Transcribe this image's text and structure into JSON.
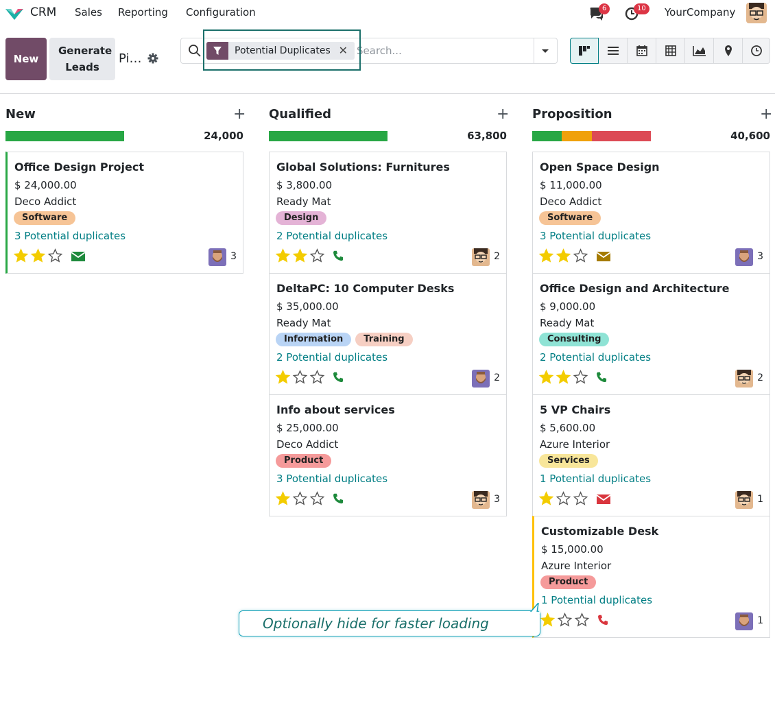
{
  "navbar": {
    "app": "CRM",
    "menu": [
      "Sales",
      "Reporting",
      "Configuration"
    ],
    "messages_count": "6",
    "activities_count": "10",
    "company": "YourCompany"
  },
  "control": {
    "new_label": "New",
    "generate_label": "Generate Leads",
    "breadcrumb": "Pi…"
  },
  "search": {
    "facet": "Potential Duplicates",
    "placeholder": "Search..."
  },
  "colors": {
    "brand": "#714b67",
    "teal": "#017e84",
    "green": "#28a745",
    "orange": "#f0a10b",
    "red": "#dc4a55"
  },
  "columns": [
    {
      "title": "New",
      "total": "24,000",
      "progress": [
        {
          "color": "#28a745",
          "fraction": 1.0
        }
      ],
      "cards": [
        {
          "title": "Office Design Project",
          "amount": "$ 24,000.00",
          "partner": "Deco Addict",
          "tags": [
            {
              "label": "Software",
              "color": "#f6c496"
            }
          ],
          "duplicates": "3 Potential duplicates",
          "stars": 2,
          "activity": "envelope-icon",
          "activity_color": "#1e8a3c",
          "avatar": "bearded",
          "count": "3",
          "border": "green"
        }
      ]
    },
    {
      "title": "Qualified",
      "total": "63,800",
      "progress": [
        {
          "color": "#28a745",
          "fraction": 1.0
        }
      ],
      "cards": [
        {
          "title": "Global Solutions: Furnitures",
          "amount": "$ 3,800.00",
          "partner": "Ready Mat",
          "tags": [
            {
              "label": "Design",
              "color": "#e4b3d6"
            }
          ],
          "duplicates": "2 Potential duplicates",
          "stars": 2,
          "activity": "phone-icon",
          "activity_color": "#1e8a3c",
          "avatar": "glasses",
          "count": "2",
          "border": ""
        },
        {
          "title": "DeltaPC: 10 Computer Desks",
          "amount": "$ 35,000.00",
          "partner": "Ready Mat",
          "tags": [
            {
              "label": "Information",
              "color": "#b9d4f5"
            },
            {
              "label": "Training",
              "color": "#f6cfc3"
            }
          ],
          "duplicates": "2 Potential duplicates",
          "stars": 1,
          "activity": "phone-icon",
          "activity_color": "#1e8a3c",
          "avatar": "bearded",
          "count": "2",
          "border": ""
        },
        {
          "title": "Info about services",
          "amount": "$ 25,000.00",
          "partner": "Deco Addict",
          "tags": [
            {
              "label": "Product",
              "color": "#f59a9a"
            }
          ],
          "duplicates": "3 Potential duplicates",
          "stars": 1,
          "activity": "phone-icon",
          "activity_color": "#1e8a3c",
          "avatar": "glasses",
          "count": "3",
          "border": ""
        }
      ]
    },
    {
      "title": "Proposition",
      "total": "40,600",
      "progress": [
        {
          "color": "#28a745",
          "fraction": 0.25
        },
        {
          "color": "#f0a10b",
          "fraction": 0.25
        },
        {
          "color": "#dc4a55",
          "fraction": 0.5
        }
      ],
      "cards": [
        {
          "title": "Open Space Design",
          "amount": "$ 11,000.00",
          "partner": "Deco Addict",
          "tags": [
            {
              "label": "Software",
              "color": "#f6c496"
            }
          ],
          "duplicates": "3 Potential duplicates",
          "stars": 2,
          "activity": "envelope-icon",
          "activity_color": "#a57b00",
          "avatar": "bearded",
          "count": "3",
          "border": ""
        },
        {
          "title": "Office Design and Architecture",
          "amount": "$ 9,000.00",
          "partner": "Ready Mat",
          "tags": [
            {
              "label": "Consulting",
              "color": "#8fe3d5"
            }
          ],
          "duplicates": "2 Potential duplicates",
          "stars": 2,
          "activity": "phone-icon",
          "activity_color": "#1e8a3c",
          "avatar": "glasses",
          "count": "2",
          "border": ""
        },
        {
          "title": "5 VP Chairs",
          "amount": "$ 5,600.00",
          "partner": "Azure Interior",
          "tags": [
            {
              "label": "Services",
              "color": "#f8e69a"
            }
          ],
          "duplicates": "1 Potential duplicates",
          "stars": 1,
          "activity": "envelope-icon",
          "activity_color": "#d9363e",
          "avatar": "glasses",
          "count": "1",
          "border": ""
        },
        {
          "title": "Customizable Desk",
          "amount": "$ 15,000.00",
          "partner": "Azure Interior",
          "tags": [
            {
              "label": "Product",
              "color": "#f59a9a"
            }
          ],
          "duplicates": "1 Potential duplicates",
          "stars": 1,
          "activity": "phone-icon",
          "activity_color": "#d9363e",
          "avatar": "bearded",
          "count": "1",
          "border": "yellow"
        }
      ]
    }
  ],
  "tooltip": "Optionally hide for faster loading"
}
